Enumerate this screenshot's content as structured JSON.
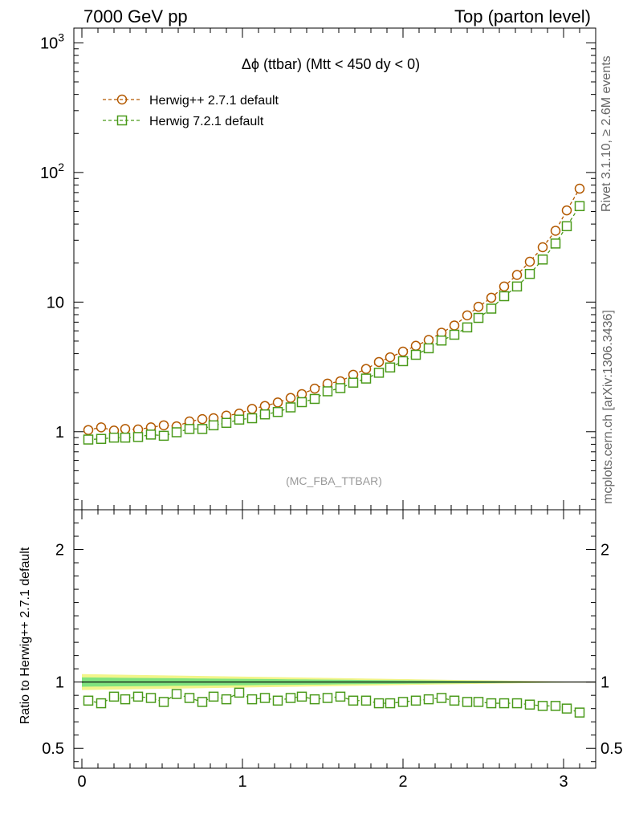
{
  "header": {
    "left": "7000 GeV pp",
    "right": "Top (parton level)"
  },
  "side_texts": {
    "rivet": "Rivet 3.1.10, ≥ 2.6M events",
    "mcplots": "mcplots.cern.ch [arXiv:1306.3436]"
  },
  "chart_data": {
    "type": "scatter",
    "title": "Δϕ (ttbar) (Mtt < 450 dy < 0)",
    "analysis_tag": "(MC_FBA_TTBAR)",
    "xlim": [
      -0.05,
      3.2
    ],
    "x_ticks": [
      "0",
      "1",
      "2",
      "3"
    ],
    "main": {
      "y_scale": "log",
      "ylim": [
        0.25,
        1300
      ],
      "y_ticks": [
        "10",
        "1",
        "10²",
        "10³"
      ],
      "x": [
        0.04,
        0.12,
        0.2,
        0.27,
        0.35,
        0.43,
        0.51,
        0.59,
        0.67,
        0.75,
        0.82,
        0.9,
        0.98,
        1.06,
        1.14,
        1.22,
        1.3,
        1.37,
        1.45,
        1.53,
        1.61,
        1.69,
        1.77,
        1.85,
        1.92,
        2.0,
        2.08,
        2.16,
        2.24,
        2.32,
        2.4,
        2.47,
        2.55,
        2.63,
        2.71,
        2.79,
        2.87,
        2.95,
        3.02,
        3.1
      ],
      "series": [
        {
          "name": "Herwig++ 2.7.1 default",
          "color": "#b35900",
          "marker": "circle",
          "values": [
            1.03,
            1.08,
            1.02,
            1.05,
            1.04,
            1.08,
            1.12,
            1.1,
            1.2,
            1.25,
            1.27,
            1.33,
            1.38,
            1.5,
            1.58,
            1.68,
            1.82,
            1.95,
            2.15,
            2.35,
            2.45,
            2.75,
            3.05,
            3.45,
            3.75,
            4.15,
            4.6,
            5.1,
            5.8,
            6.6,
            7.9,
            9.2,
            10.8,
            13.2,
            16.2,
            20.5,
            26.5,
            35.5,
            51,
            75
          ]
        },
        {
          "name": "Herwig 7.2.1 default",
          "color": "#4a9a1a",
          "marker": "square",
          "values": [
            0.87,
            0.88,
            0.9,
            0.9,
            0.91,
            0.95,
            0.93,
            0.99,
            1.05,
            1.05,
            1.12,
            1.17,
            1.24,
            1.27,
            1.36,
            1.42,
            1.54,
            1.69,
            1.79,
            2.05,
            2.17,
            2.39,
            2.57,
            2.85,
            3.13,
            3.5,
            3.92,
            4.4,
            5.05,
            5.6,
            6.38,
            7.55,
            8.9,
            11.1,
            13.2,
            16.5,
            21.3,
            28.3,
            38.5,
            55
          ]
        }
      ]
    },
    "ratio": {
      "ylabel": "Ratio to Herwig++ 2.7.1 default",
      "ylim": [
        0.35,
        2.3
      ],
      "y_ticks": [
        "0.5",
        "1",
        "2"
      ],
      "reference_band": {
        "inner_color": "#80e37f",
        "outer_color": "#f2f58a"
      },
      "series": [
        {
          "name": "Herwig 7.2.1 default",
          "color": "#4a9a1a",
          "values": [
            0.86,
            0.84,
            0.89,
            0.87,
            0.89,
            0.88,
            0.85,
            0.91,
            0.88,
            0.85,
            0.89,
            0.87,
            0.92,
            0.87,
            0.88,
            0.86,
            0.88,
            0.89,
            0.87,
            0.88,
            0.89,
            0.86,
            0.86,
            0.84,
            0.84,
            0.85,
            0.86,
            0.87,
            0.88,
            0.86,
            0.85,
            0.85,
            0.84,
            0.84,
            0.84,
            0.83,
            0.82,
            0.82,
            0.8,
            0.77
          ]
        }
      ]
    }
  }
}
